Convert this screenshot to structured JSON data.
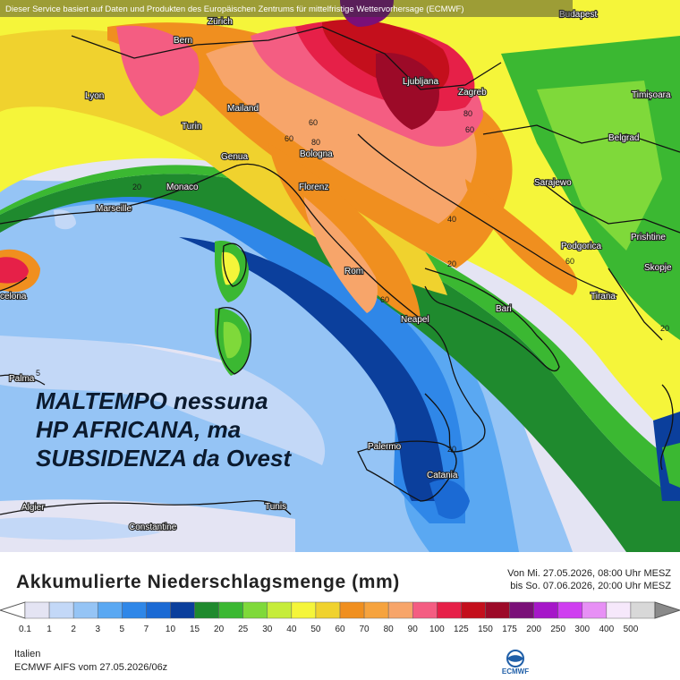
{
  "credit_text": "Dieser Service basiert auf Daten und Produkten des Europäischen Zentrums für mittelfristige Wettervorhersage (ECMWF)",
  "headline": {
    "line1": "MALTEMPO nessuna",
    "line2": "HP AFRICANA, ma",
    "line3": "SUBSIDENZA da Ovest"
  },
  "cities": [
    {
      "name": "Zürich"
    },
    {
      "name": "Bern"
    },
    {
      "name": "Budapest"
    },
    {
      "name": "Lyon"
    },
    {
      "name": "Mailand"
    },
    {
      "name": "Turin"
    },
    {
      "name": "Ljubljana"
    },
    {
      "name": "Zagreb"
    },
    {
      "name": "Timișoara"
    },
    {
      "name": "Belgrad"
    },
    {
      "name": "Genua"
    },
    {
      "name": "Bologna"
    },
    {
      "name": "Monaco"
    },
    {
      "name": "Marseille"
    },
    {
      "name": "Florenz"
    },
    {
      "name": "Sarajewo"
    },
    {
      "name": "Podgorica"
    },
    {
      "name": "Prishtine"
    },
    {
      "name": "Rom"
    },
    {
      "name": "Skopje"
    },
    {
      "name": "Tirana"
    },
    {
      "name": "Neapel"
    },
    {
      "name": "Bari"
    },
    {
      "name": "Palma"
    },
    {
      "name": "Palermo"
    },
    {
      "name": "Catania"
    },
    {
      "name": "Algier"
    },
    {
      "name": "Tunis"
    },
    {
      "name": "Constantine"
    },
    {
      "name": "celona"
    }
  ],
  "isolines": [
    "20",
    "60",
    "80",
    "60",
    "80",
    "60",
    "40",
    "20",
    "60",
    "60",
    "20",
    "20",
    "5"
  ],
  "legend": {
    "title": "Akkumulierte Niederschlagsmenge (mm)",
    "period_from": "Von Mi. 27.05.2026, 08:00 Uhr MESZ",
    "period_to": "bis So. 07.06.2026, 20:00 Uhr MESZ",
    "ticks": [
      "0.1",
      "1",
      "2",
      "3",
      "5",
      "7",
      "10",
      "15",
      "20",
      "25",
      "30",
      "40",
      "50",
      "60",
      "70",
      "80",
      "90",
      "100",
      "125",
      "150",
      "175",
      "200",
      "250",
      "300",
      "400",
      "500"
    ],
    "colors": [
      "#e4e4f3",
      "#c3d8f7",
      "#95c4f5",
      "#5aa8f2",
      "#2f87e8",
      "#1b6ad4",
      "#0b3f9c",
      "#1f8a2e",
      "#3bb832",
      "#7fd93a",
      "#c6ec3a",
      "#f5f53a",
      "#f0d22e",
      "#f08f1f",
      "#f6a33e",
      "#f7a56a",
      "#f45d82",
      "#e62048",
      "#c40f1c",
      "#9c0a28",
      "#7a1078",
      "#a617c9",
      "#cf3ff0",
      "#e790f5",
      "#f6e8fb",
      "#d8d8d8"
    ]
  },
  "region": "Italien",
  "model": "ECMWF AIFS vom 27.05.2026/06z",
  "logo_text": "ECMWF"
}
